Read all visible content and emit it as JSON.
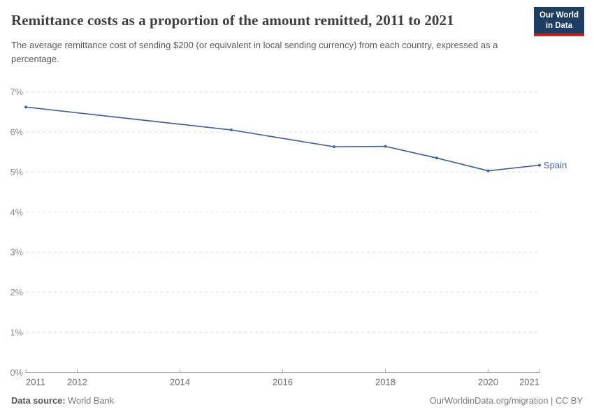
{
  "header": {
    "title": "Remittance costs as a proportion of the amount remitted, 2011 to 2021",
    "subtitle": "The average remittance cost of sending $200 (or equivalent in local sending currency) from each country, expressed as a percentage.",
    "logo_line1": "Our World",
    "logo_line2": "in Data"
  },
  "chart_data": {
    "type": "line",
    "title": "Remittance costs as a proportion of the amount remitted, 2011 to 2021",
    "xlabel": "",
    "ylabel": "",
    "x_range": [
      2011,
      2021
    ],
    "y_range": [
      0,
      7
    ],
    "x_ticks": [
      2011,
      2012,
      2014,
      2016,
      2018,
      2020,
      2021
    ],
    "y_ticks": [
      0,
      1,
      2,
      3,
      4,
      5,
      6,
      7
    ],
    "y_tick_suffix": "%",
    "grid": true,
    "legend_position": "end-of-line",
    "series": [
      {
        "name": "Spain",
        "color": "#3e64a5",
        "x": [
          2011,
          2015,
          2017,
          2018,
          2019,
          2020,
          2021
        ],
        "values": [
          6.62,
          6.05,
          5.63,
          5.64,
          5.35,
          5.03,
          5.17
        ]
      }
    ]
  },
  "footer": {
    "source_label": "Data source:",
    "source_value": "World Bank",
    "credit": "OurWorldinData.org/migration | CC BY"
  },
  "colors": {
    "accent_line": "#3e64a5",
    "logo_bg": "#1d3d63",
    "logo_stripe": "#bc2826",
    "gridline": "#dedede",
    "axis": "#a8a8a8"
  }
}
